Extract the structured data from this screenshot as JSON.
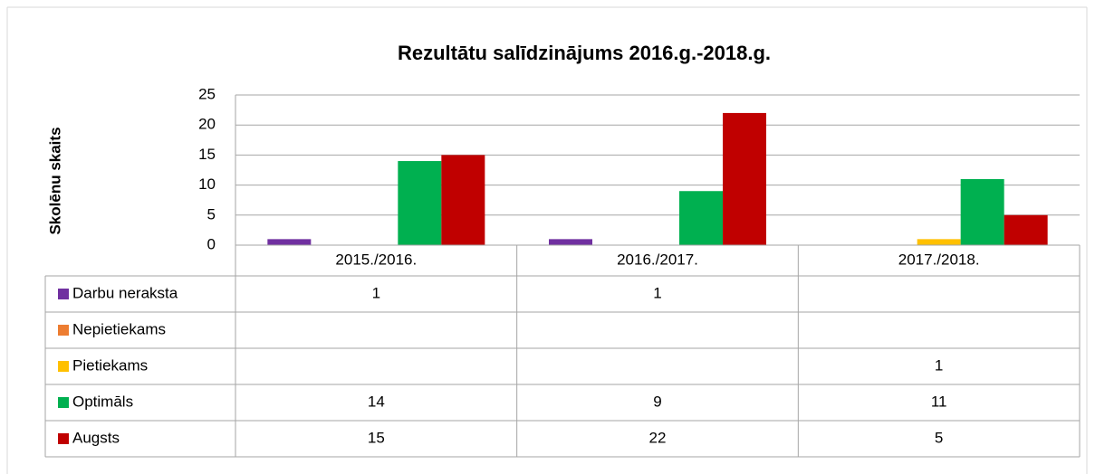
{
  "chart_data": {
    "type": "bar",
    "title": "Rezultātu salīdzinājums 2016.g.-2018.g.",
    "y_label": "Skolēnu skaits",
    "categories": [
      "2015./2016.",
      "2016./2017.",
      "2017./2018."
    ],
    "series": [
      {
        "name": "Darbu neraksta",
        "color": "#7030a0",
        "values": [
          1,
          1,
          null
        ]
      },
      {
        "name": "Nepietiekams",
        "color": "#ed7d31",
        "values": [
          null,
          null,
          null
        ]
      },
      {
        "name": "Pietiekams",
        "color": "#ffc000",
        "values": [
          null,
          null,
          1
        ]
      },
      {
        "name": "Optimāls",
        "color": "#00b050",
        "values": [
          14,
          9,
          11
        ]
      },
      {
        "name": "Augsts",
        "color": "#c00000",
        "values": [
          15,
          22,
          5
        ]
      }
    ],
    "ylim": [
      0,
      25
    ],
    "yticks": [
      0,
      5,
      10,
      15,
      20,
      25
    ],
    "grid": true,
    "data_table": true
  }
}
